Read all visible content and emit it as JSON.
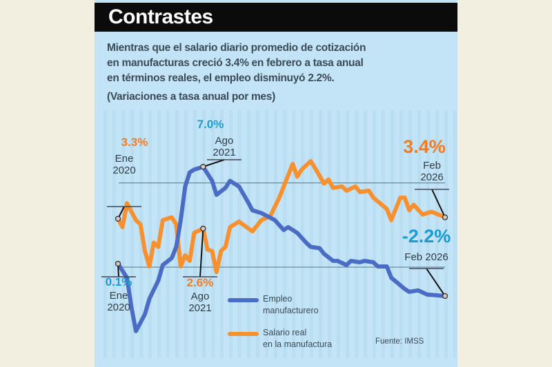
{
  "title": "Contrastes",
  "description": [
    "Mientras que el salario diario promedio de cotización",
    "en manufacturas creció 3.4% en febrero a tasa anual",
    "en términos reales, el empleo disminuyó 2.2%."
  ],
  "subtitle": "(Variaciones a tasa anual por mes)",
  "source": "Fuente: IMSS",
  "colors": {
    "employment": "#4a6cc4",
    "salary": "#f7902f",
    "employment_label": "#1a9cd2",
    "salary_label": "#f47b20",
    "background": "#c3e4f6"
  },
  "chart_data": {
    "type": "line",
    "title": "Contrastes",
    "subtitle": "(Variaciones a tasa anual por mes)",
    "xlabel": "",
    "ylabel": "",
    "xlim": [
      "2020-01",
      "2026-02"
    ],
    "ylim": [
      -5.5,
      8.5
    ],
    "grid": "horizontal reference lines",
    "legend": "bottom-center",
    "series": [
      {
        "name": "Empleo manufacturero",
        "color": "#4a6cc4",
        "points": [
          [
            "2020-01",
            0.1
          ],
          [
            "2020-03",
            -0.9
          ],
          [
            "2020-04",
            -3.0
          ],
          [
            "2020-05",
            -4.7
          ],
          [
            "2020-07",
            -3.5
          ],
          [
            "2020-08",
            -2.4
          ],
          [
            "2020-10",
            -1.1
          ],
          [
            "2020-11",
            0.0
          ],
          [
            "2021-01",
            0.5
          ],
          [
            "2021-02",
            1.3
          ],
          [
            "2021-03",
            3.2
          ],
          [
            "2021-04",
            5.6
          ],
          [
            "2021-05",
            6.6
          ],
          [
            "2021-06",
            6.8
          ],
          [
            "2021-08",
            7.0
          ],
          [
            "2021-10",
            6.0
          ],
          [
            "2021-11",
            5.0
          ],
          [
            "2022-01",
            5.5
          ],
          [
            "2022-02",
            6.0
          ],
          [
            "2022-04",
            5.6
          ],
          [
            "2022-06",
            4.5
          ],
          [
            "2022-07",
            3.9
          ],
          [
            "2022-09",
            3.7
          ],
          [
            "2022-12",
            3.2
          ],
          [
            "2023-02",
            2.5
          ],
          [
            "2023-03",
            2.7
          ],
          [
            "2023-05",
            2.3
          ],
          [
            "2023-07",
            1.6
          ],
          [
            "2023-08",
            1.3
          ],
          [
            "2023-10",
            1.2
          ],
          [
            "2023-11",
            0.8
          ],
          [
            "2024-01",
            0.3
          ],
          [
            "2024-02",
            0.3
          ],
          [
            "2024-04",
            0.0
          ],
          [
            "2024-05",
            0.3
          ],
          [
            "2024-07",
            0.2
          ],
          [
            "2024-08",
            0.3
          ],
          [
            "2024-10",
            0.2
          ],
          [
            "2024-11",
            -0.1
          ],
          [
            "2025-01",
            -0.1
          ],
          [
            "2025-02",
            -0.9
          ],
          [
            "2025-05",
            -1.7
          ],
          [
            "2025-06",
            -1.9
          ],
          [
            "2025-08",
            -1.8
          ],
          [
            "2025-10",
            -2.1
          ],
          [
            "2026-02",
            -2.2
          ]
        ]
      },
      {
        "name": "Salario real en la manufactura",
        "color": "#f7902f",
        "points": [
          [
            "2020-01",
            3.3
          ],
          [
            "2020-02",
            2.7
          ],
          [
            "2020-03",
            4.4
          ],
          [
            "2020-05",
            3.2
          ],
          [
            "2020-06",
            2.9
          ],
          [
            "2020-07",
            1.0
          ],
          [
            "2020-08",
            -0.1
          ],
          [
            "2020-09",
            1.6
          ],
          [
            "2020-10",
            1.3
          ],
          [
            "2020-11",
            3.2
          ],
          [
            "2021-01",
            3.4
          ],
          [
            "2021-02",
            2.9
          ],
          [
            "2021-03",
            -0.1
          ],
          [
            "2021-04",
            0.7
          ],
          [
            "2021-05",
            0.3
          ],
          [
            "2021-06",
            2.3
          ],
          [
            "2021-08",
            2.6
          ],
          [
            "2021-09",
            1.1
          ],
          [
            "2021-10",
            1.0
          ],
          [
            "2021-11",
            -0.5
          ],
          [
            "2021-12",
            1.0
          ],
          [
            "2022-01",
            1.3
          ],
          [
            "2022-02",
            2.7
          ],
          [
            "2022-04",
            3.1
          ],
          [
            "2022-07",
            2.4
          ],
          [
            "2022-09",
            3.2
          ],
          [
            "2022-11",
            3.5
          ],
          [
            "2023-01",
            4.8
          ],
          [
            "2023-03",
            6.4
          ],
          [
            "2023-04",
            7.2
          ],
          [
            "2023-05",
            6.3
          ],
          [
            "2023-06",
            6.8
          ],
          [
            "2023-08",
            7.4
          ],
          [
            "2023-09",
            6.9
          ],
          [
            "2023-11",
            5.8
          ],
          [
            "2023-12",
            6.1
          ],
          [
            "2024-01",
            5.5
          ],
          [
            "2024-03",
            5.6
          ],
          [
            "2024-04",
            5.3
          ],
          [
            "2024-06",
            5.6
          ],
          [
            "2024-07",
            5.2
          ],
          [
            "2024-09",
            5.3
          ],
          [
            "2024-10",
            4.8
          ],
          [
            "2025-01",
            4.0
          ],
          [
            "2025-02",
            3.2
          ],
          [
            "2025-04",
            4.8
          ],
          [
            "2025-05",
            4.8
          ],
          [
            "2025-06",
            3.9
          ],
          [
            "2025-07",
            4.3
          ],
          [
            "2025-09",
            3.6
          ],
          [
            "2025-11",
            3.8
          ],
          [
            "2026-02",
            3.4
          ]
        ]
      }
    ],
    "annotations": [
      {
        "series": 1,
        "date": "2020-01",
        "value_label": "3.3%",
        "period": [
          "Ene",
          "2020"
        ]
      },
      {
        "series": 0,
        "date": "2020-01",
        "value_label": "0.1%",
        "period": [
          "Ene",
          "2020"
        ]
      },
      {
        "series": 0,
        "date": "2021-08",
        "value_label": "7.0%",
        "period": [
          "Ago",
          "2021"
        ]
      },
      {
        "series": 1,
        "date": "2021-08",
        "value_label": "2.6%",
        "period": [
          "Ago",
          "2021"
        ]
      },
      {
        "series": 1,
        "date": "2026-02",
        "value_label": "3.4%",
        "period": [
          "Feb",
          "2026"
        ]
      },
      {
        "series": 0,
        "date": "2026-02",
        "value_label": "-2.2%",
        "period": [
          "Feb 2026"
        ]
      }
    ],
    "legend_entries": [
      {
        "lines": [
          "Empleo",
          "manufacturero"
        ],
        "color": "#4a6cc4"
      },
      {
        "lines": [
          "Salario real",
          "en la manufactura"
        ],
        "color": "#f7902f"
      }
    ],
    "reference_lines": [
      0,
      6
    ]
  }
}
